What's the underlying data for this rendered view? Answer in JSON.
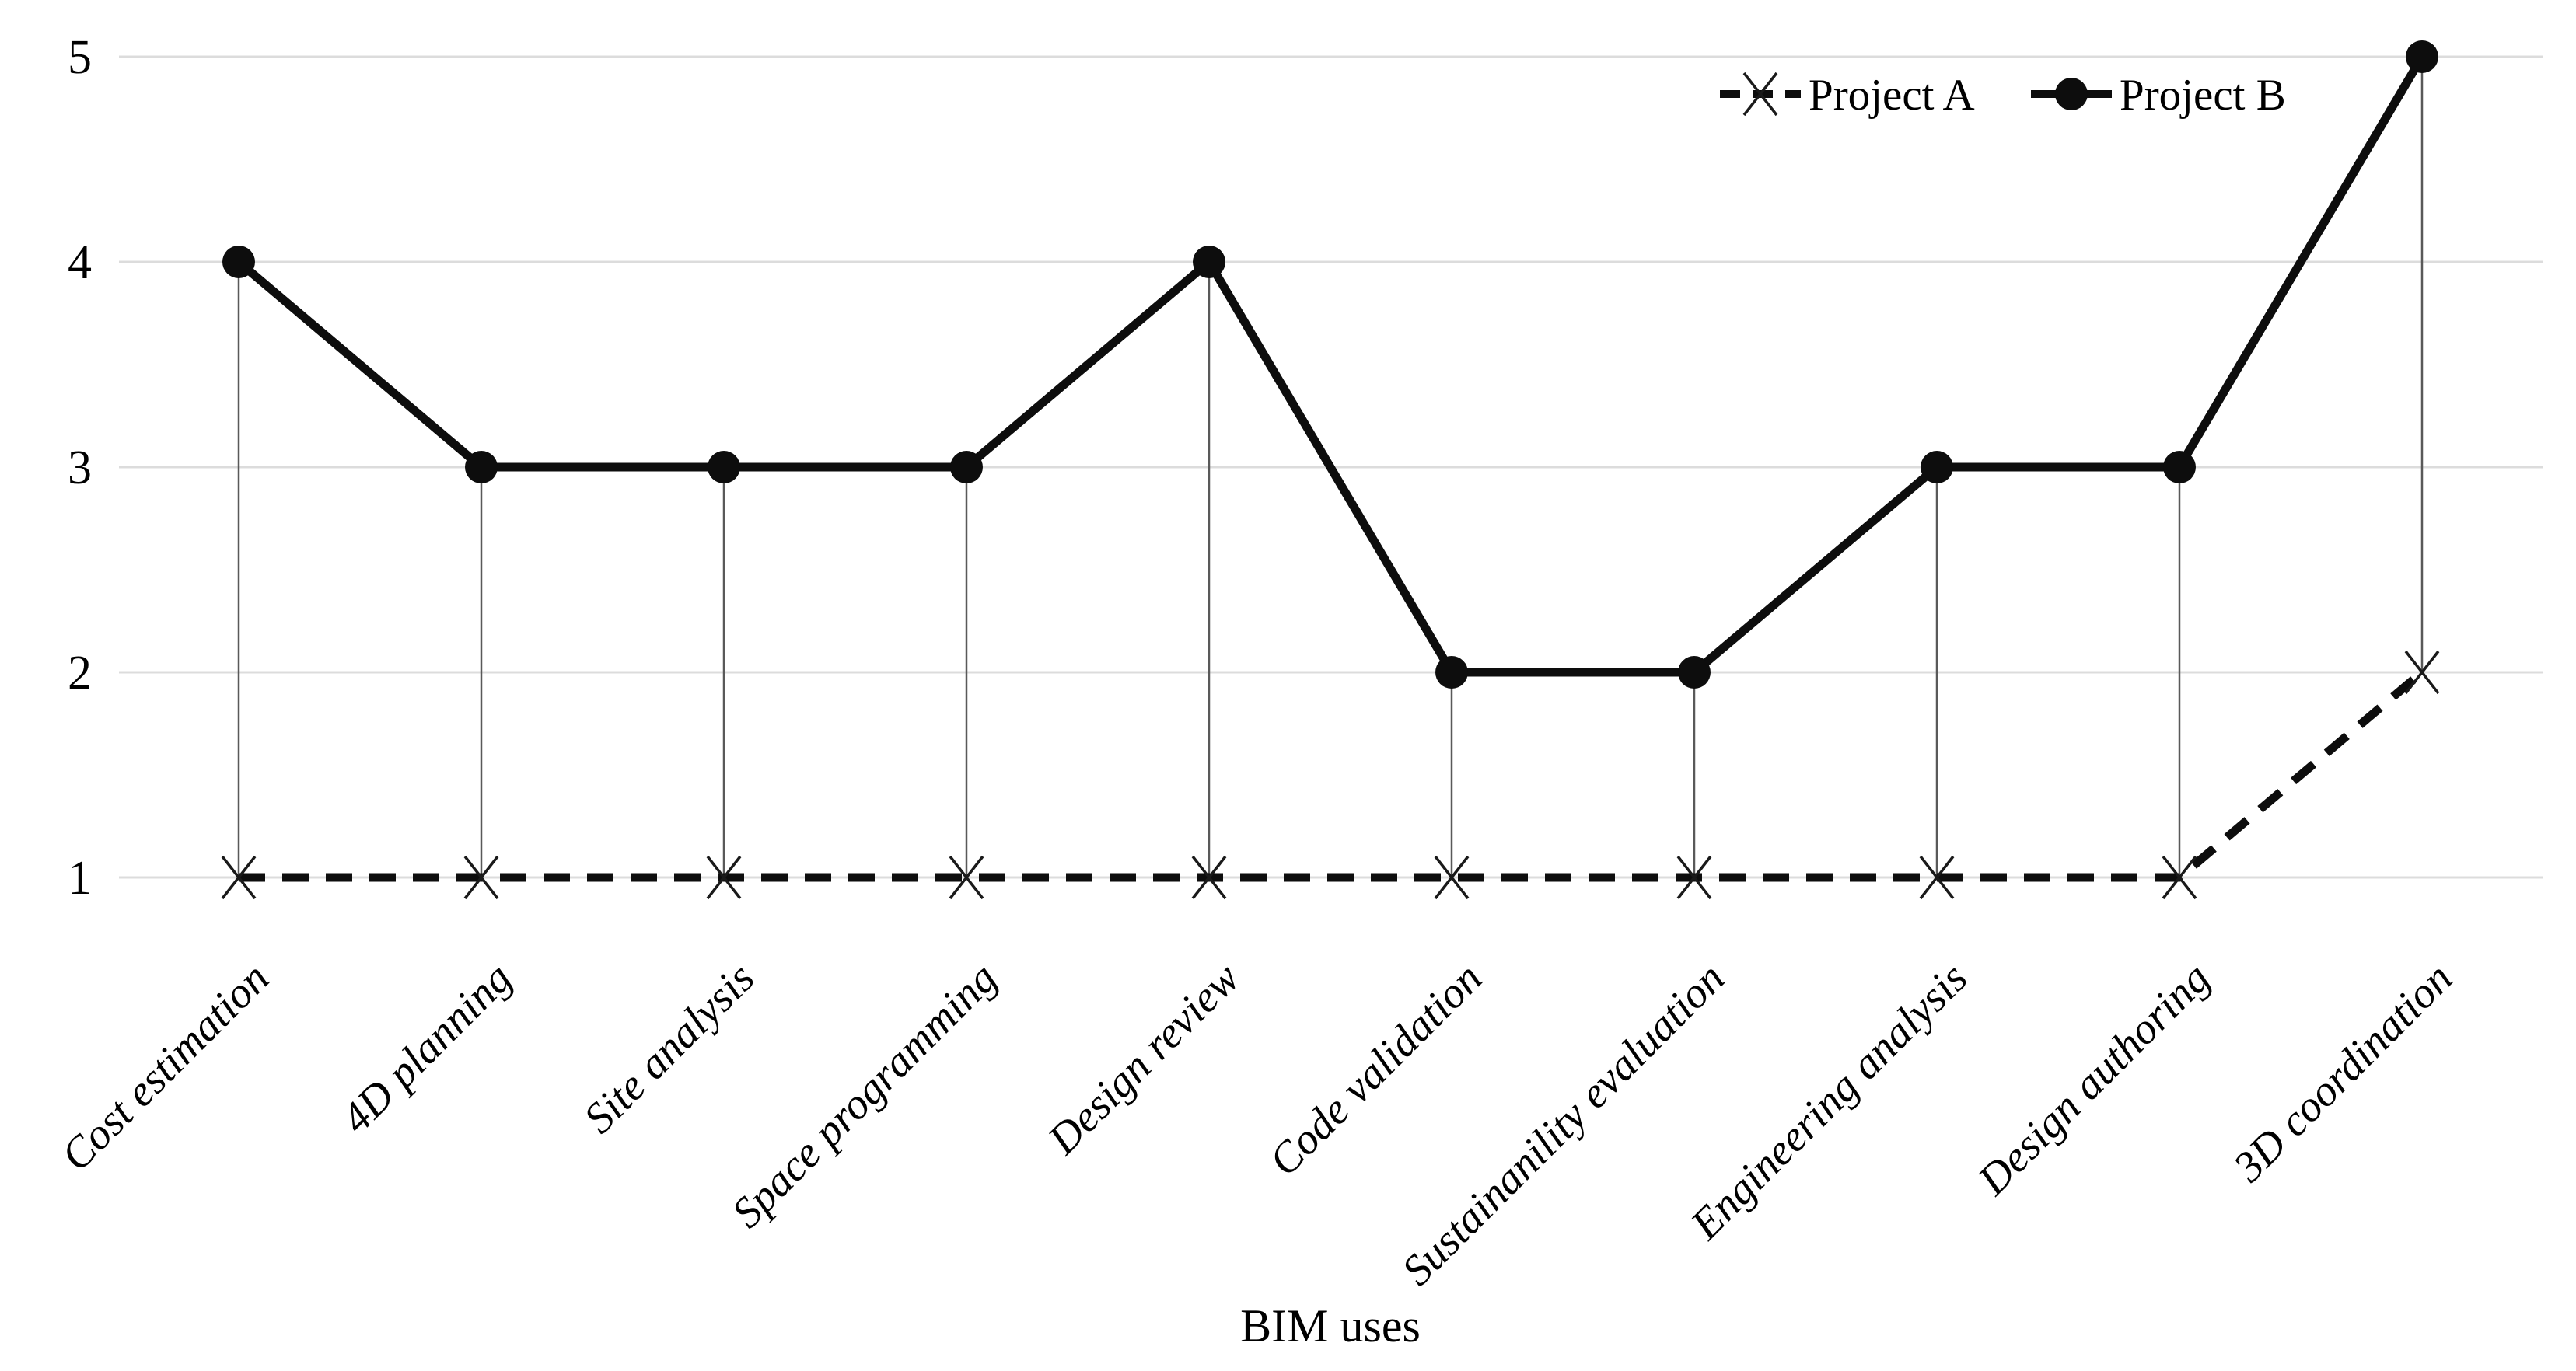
{
  "chart_data": {
    "type": "line",
    "title": "",
    "categories": [
      "Cost estimation",
      "4D planning",
      "Site analysis",
      "Space programming",
      "Design review",
      "Code validation",
      "Sustainanility evaluation",
      "Engineering analysis",
      "Design authoring",
      "3D coordination"
    ],
    "series": [
      {
        "name": "Project A",
        "values": [
          1,
          1,
          1,
          1,
          1,
          1,
          1,
          1,
          1,
          2
        ],
        "line_style": "dashed",
        "marker": "x"
      },
      {
        "name": "Project B",
        "values": [
          4,
          3,
          3,
          3,
          4,
          2,
          2,
          3,
          3,
          5
        ],
        "line_style": "solid",
        "marker": "circle"
      }
    ],
    "xlabel": "BIM uses",
    "ylabel": "",
    "ylim": [
      1,
      5
    ],
    "yticks": [
      1,
      2,
      3,
      4,
      5
    ],
    "grid": "horizontal-light",
    "legend_position": "top-right",
    "drop_lines": "vertical-between-series",
    "colors": {
      "background": "#ffffff",
      "grid": "#dcdcdc",
      "line": "#0d0d0d",
      "drop_line": "#595959",
      "text": "#000000"
    }
  }
}
